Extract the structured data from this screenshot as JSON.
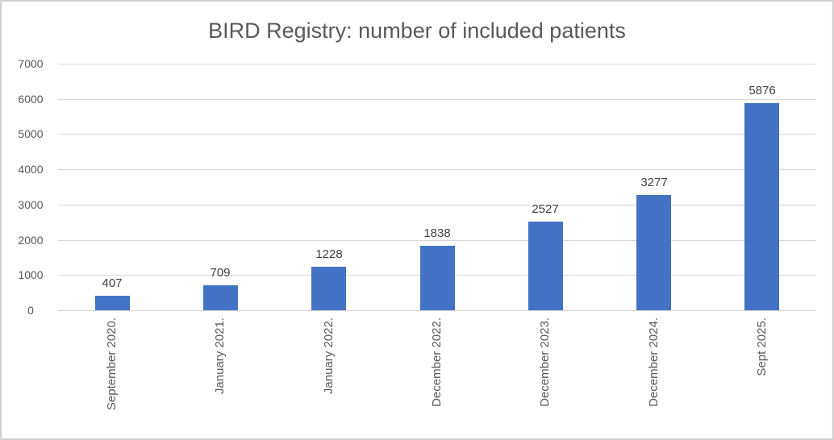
{
  "chart_data": {
    "type": "bar",
    "title": "BIRD Registry: number of included patients",
    "categories": [
      "September 2020.",
      "January 2021.",
      "January 2022.",
      "December 2022.",
      "December 2023.",
      "December 2024.",
      "Sept 2025."
    ],
    "values": [
      407,
      709,
      1228,
      1838,
      2527,
      3277,
      5876
    ],
    "xlabel": "",
    "ylabel": "",
    "ylim": [
      0,
      7000
    ],
    "y_ticks": [
      0,
      1000,
      2000,
      3000,
      4000,
      5000,
      6000,
      7000
    ],
    "grid": true,
    "legend": false,
    "data_labels_shown": true,
    "bar_color": "#4472C4",
    "gridline_color": "#D9D9D9",
    "title_color": "#595959",
    "axis_label_color": "#595959",
    "data_label_color": "#404040",
    "frame_border_color": "#D0CECE"
  }
}
